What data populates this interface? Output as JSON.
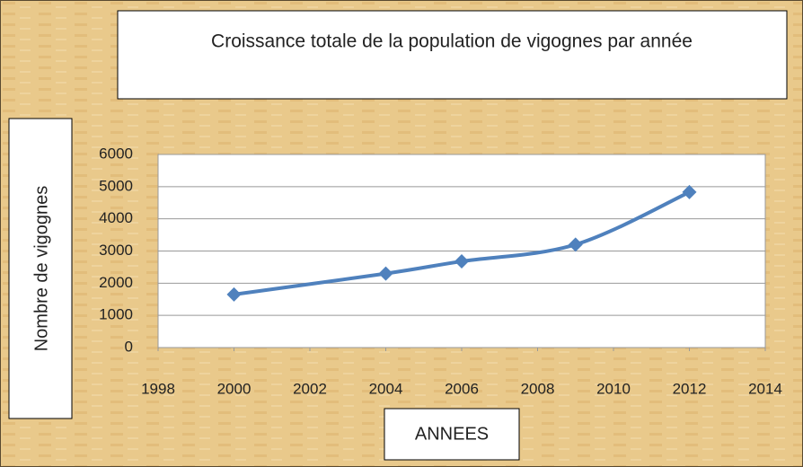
{
  "chart_data": {
    "type": "line",
    "smooth": true,
    "title": "Croissance totale de la population de vigognes par année",
    "x_label": "ANNEES",
    "y_label": "Nombre de vigognes",
    "x": [
      2000,
      2004,
      2006,
      2009,
      2012
    ],
    "series": [
      {
        "name": "Nombre de vigognes",
        "color": "#4f81bd",
        "values": [
          1650,
          2300,
          2680,
          3200,
          4830
        ]
      }
    ],
    "xlim": [
      1998,
      2014
    ],
    "xticks": [
      1998,
      2000,
      2002,
      2004,
      2006,
      2008,
      2010,
      2012,
      2014
    ],
    "ylim": [
      0,
      6000
    ],
    "yticks": [
      0,
      1000,
      2000,
      3000,
      4000,
      5000,
      6000
    ],
    "grid": true,
    "marker": "diamond"
  }
}
